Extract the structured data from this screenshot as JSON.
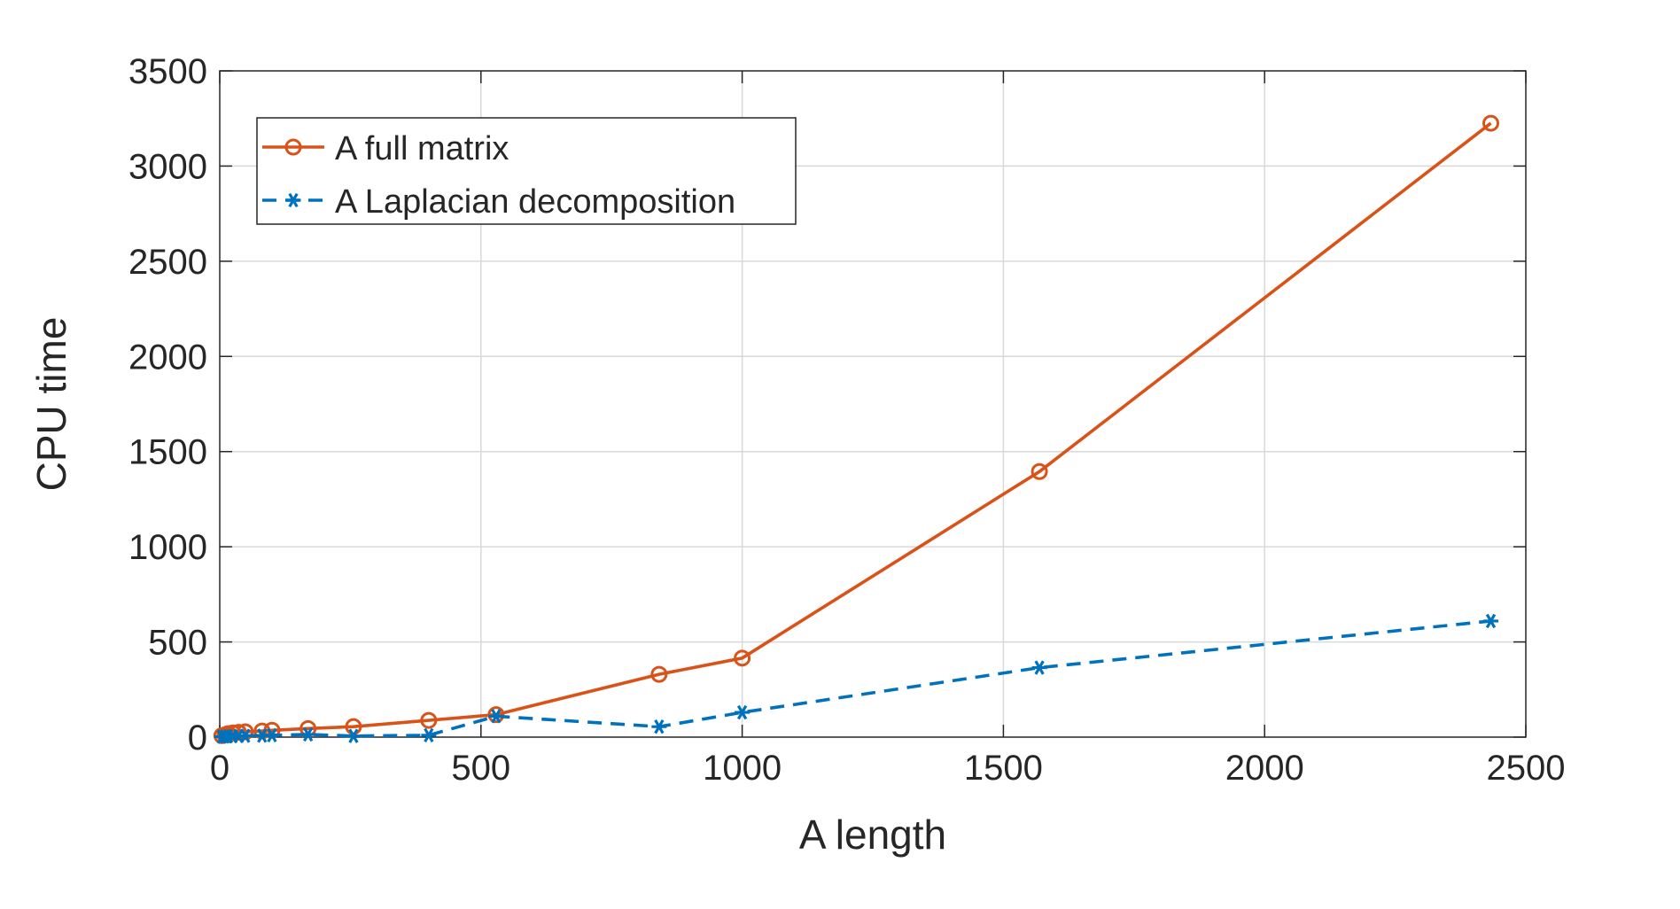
{
  "chart_data": {
    "type": "line",
    "xlabel": "A length",
    "ylabel": "CPU time",
    "xlim": [
      0,
      2500
    ],
    "ylim": [
      0,
      3500
    ],
    "xticks": [
      0,
      500,
      1000,
      1500,
      2000,
      2500
    ],
    "yticks": [
      0,
      500,
      1000,
      1500,
      2000,
      2500,
      3000,
      3500
    ],
    "grid": true,
    "legend_position": "top-left",
    "series": [
      {
        "name": "A full matrix",
        "color": "#D95319",
        "line_style": "solid",
        "marker": "circle",
        "x": [
          4,
          10,
          16,
          25,
          36,
          49,
          81,
          100,
          169,
          256,
          400,
          529,
          841,
          1000,
          1569,
          2433
        ],
        "y": [
          8,
          12,
          18,
          22,
          25,
          28,
          32,
          36,
          45,
          55,
          88,
          118,
          330,
          415,
          1395,
          3225
        ]
      },
      {
        "name": "A Laplacian decomposition",
        "color": "#0072BD",
        "line_style": "dashed",
        "marker": "asterisk",
        "x": [
          4,
          10,
          16,
          25,
          36,
          49,
          81,
          100,
          169,
          256,
          400,
          529,
          841,
          1000,
          1569,
          2433
        ],
        "y": [
          2,
          3,
          4,
          5,
          6,
          7,
          8,
          10,
          14,
          6,
          10,
          110,
          55,
          130,
          365,
          610
        ]
      }
    ]
  }
}
